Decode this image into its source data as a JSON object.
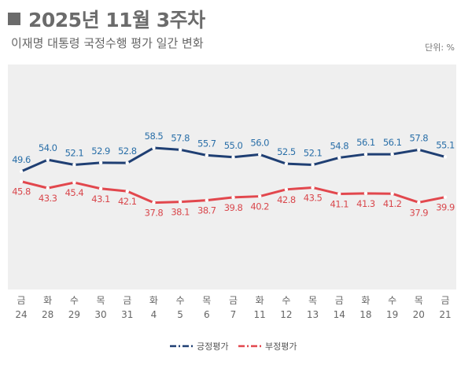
{
  "header": {
    "title": "2025년 11월 3주차",
    "subtitle": "이재명 대통령 국정수행 평가 일간 변화",
    "unit": "단위: %"
  },
  "chart_data": {
    "type": "line",
    "categories": [
      {
        "day": "금",
        "date": "24"
      },
      {
        "day": "화",
        "date": "28"
      },
      {
        "day": "수",
        "date": "29"
      },
      {
        "day": "목",
        "date": "30"
      },
      {
        "day": "금",
        "date": "31"
      },
      {
        "day": "화",
        "date": "4"
      },
      {
        "day": "수",
        "date": "5"
      },
      {
        "day": "목",
        "date": "6"
      },
      {
        "day": "금",
        "date": "7"
      },
      {
        "day": "화",
        "date": "11"
      },
      {
        "day": "수",
        "date": "12"
      },
      {
        "day": "목",
        "date": "13"
      },
      {
        "day": "금",
        "date": "14"
      },
      {
        "day": "화",
        "date": "18"
      },
      {
        "day": "수",
        "date": "19"
      },
      {
        "day": "목",
        "date": "20"
      },
      {
        "day": "금",
        "date": "21"
      }
    ],
    "series": [
      {
        "name": "긍정평가",
        "color": "#1f3f73",
        "label_color": "#2a6fa8",
        "label_position": "above",
        "values": [
          49.6,
          54.0,
          52.1,
          52.9,
          52.8,
          58.5,
          57.8,
          55.7,
          55.0,
          56.0,
          52.5,
          52.1,
          54.8,
          56.1,
          56.1,
          57.8,
          55.1
        ]
      },
      {
        "name": "부정평가",
        "color": "#e2474d",
        "label_color": "#d9484d",
        "label_position": "below",
        "values": [
          45.8,
          43.3,
          45.4,
          43.1,
          42.1,
          37.8,
          38.1,
          38.7,
          39.8,
          40.2,
          42.8,
          43.5,
          41.1,
          41.3,
          41.2,
          37.9,
          39.9
        ]
      }
    ],
    "ylim": [
      5,
      90
    ],
    "line_style": "dash-dot",
    "grid": false,
    "legend": "bottom-right",
    "plot_background": "#efefef"
  }
}
